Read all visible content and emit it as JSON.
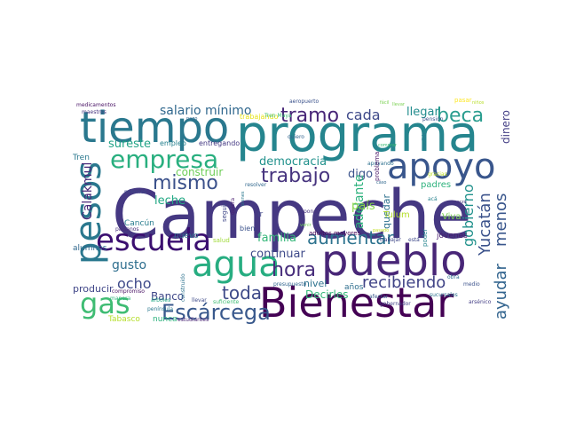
{
  "words": [
    {
      "id": "campeche",
      "text": "Campeche",
      "color": "#453882"
    },
    {
      "id": "programa",
      "text": "programa",
      "color": "#25858e"
    },
    {
      "id": "bienestar",
      "text": "Bienestar",
      "color": "#440154"
    },
    {
      "id": "pueblo",
      "text": "pueblo",
      "color": "#482677"
    },
    {
      "id": "tiempo",
      "text": "tiempo",
      "color": "#2a788e"
    },
    {
      "id": "apoyo",
      "text": "apoyo",
      "color": "#39568c"
    },
    {
      "id": "escuela",
      "text": "escuela",
      "color": "#3b0f70"
    },
    {
      "id": "agua",
      "text": "agua",
      "color": "#27ad81"
    },
    {
      "id": "pesos",
      "text": "pesos",
      "color": "#2a788e"
    },
    {
      "id": "gas",
      "text": "gas",
      "color": "#3fbc73"
    },
    {
      "id": "empresa",
      "text": "empresa",
      "color": "#29af7f"
    },
    {
      "id": "escarcega",
      "text": "Escárcega",
      "color": "#38588c"
    },
    {
      "id": "tramo",
      "text": "tramo",
      "color": "#482677"
    },
    {
      "id": "beca",
      "text": "beca",
      "color": "#2a9d8f"
    },
    {
      "id": "trabajo",
      "text": "trabajo",
      "color": "#46337e"
    },
    {
      "id": "mismo",
      "text": "mismo",
      "color": "#3b518b"
    },
    {
      "id": "aumentar",
      "text": "aumentar",
      "color": "#2c728e"
    },
    {
      "id": "hora",
      "text": "hora",
      "color": "#472d7b"
    },
    {
      "id": "recibiendo",
      "text": "recibiendo",
      "color": "#414487"
    },
    {
      "id": "toda",
      "text": "toda",
      "color": "#3e4a89"
    },
    {
      "id": "ayudar",
      "text": "ayudar",
      "color": "#32648e"
    },
    {
      "id": "yucatan",
      "text": "Yucatán",
      "color": "#3b528b"
    },
    {
      "id": "menos",
      "text": "menos",
      "color": "#39568c"
    },
    {
      "id": "gobierno",
      "text": "gobierno",
      "color": "#21918c"
    },
    {
      "id": "salario",
      "text": "salario mínimo",
      "color": "#31688e"
    },
    {
      "id": "cada",
      "text": "cada",
      "color": "#3e4989"
    },
    {
      "id": "llegar",
      "text": "llegar",
      "color": "#228c8d"
    },
    {
      "id": "sureste",
      "text": "sureste",
      "color": "#20a386"
    },
    {
      "id": "democracia",
      "text": "democracia",
      "color": "#21918c"
    },
    {
      "id": "construir",
      "text": "construir",
      "color": "#6ece58"
    },
    {
      "id": "digo",
      "text": "digo",
      "color": "#3a538b"
    },
    {
      "id": "leche",
      "text": "leche",
      "color": "#22a884"
    },
    {
      "id": "calakmul",
      "text": "Calakmul",
      "color": "#482878"
    },
    {
      "id": "adelante",
      "text": "adelante",
      "color": "#2db27d"
    },
    {
      "id": "pais",
      "text": "país",
      "color": "#86d549"
    },
    {
      "id": "familia",
      "text": "familia",
      "color": "#35b779"
    },
    {
      "id": "continuar",
      "text": "continuar",
      "color": "#3e4a89"
    },
    {
      "id": "ocho",
      "text": "ocho",
      "color": "#3e4989"
    },
    {
      "id": "gusto",
      "text": "gusto",
      "color": "#2e6e8e"
    },
    {
      "id": "nivel",
      "text": "nivel",
      "color": "#2c728e"
    },
    {
      "id": "decirles",
      "text": "Decirles",
      "color": "#35b779"
    },
    {
      "id": "banco",
      "text": "Banco",
      "color": "#3f4788"
    },
    {
      "id": "producir",
      "text": "producir",
      "color": "#404688"
    },
    {
      "id": "quedar",
      "text": "quedar",
      "color": "#2d708e"
    },
    {
      "id": "dinero",
      "text": "dinero",
      "color": "#433e85"
    },
    {
      "id": "tren",
      "text": "Tren",
      "color": "#2a788e"
    },
    {
      "id": "tulum",
      "text": "Tulum",
      "color": "#b5de2b"
    },
    {
      "id": "viva",
      "text": "Viva",
      "color": "#7ad151"
    },
    {
      "id": "padres",
      "text": "padres",
      "color": "#2db27d"
    },
    {
      "id": "jovenes",
      "text": "jóvenes",
      "color": "#481c6e"
    },
    {
      "id": "anos",
      "text": "años",
      "color": "#2e6e8e"
    },
    {
      "id": "alumnos",
      "text": "alumnos",
      "color": "#30688e"
    },
    {
      "id": "cancun",
      "text": "Cancún",
      "color": "#287d8e"
    },
    {
      "id": "nuevo",
      "text": "nuevo",
      "color": "#2c728e"
    },
    {
      "id": "tabasco",
      "text": "Tabasco",
      "color": "#b5de2b"
    },
    {
      "id": "nunca",
      "text": "nunca",
      "color": "#2db27d"
    },
    {
      "id": "entregando",
      "text": "entregando",
      "color": "#443983"
    },
    {
      "id": "empleo",
      "text": "empleo",
      "color": "#26818e"
    },
    {
      "id": "trabajando",
      "text": "trabajando",
      "color": "#e5e419"
    },
    {
      "id": "maestros",
      "text": "maestros",
      "color": "#46327e"
    },
    {
      "id": "medicamentos",
      "text": "medicamentos",
      "color": "#471063"
    },
    {
      "id": "aeropuerto",
      "text": "aeropuerto",
      "color": "#3b528b"
    },
    {
      "id": "pension",
      "text": "pensión",
      "color": "#3b528b"
    },
    {
      "id": "quiero",
      "text": "quiero",
      "color": "#33638d"
    },
    {
      "id": "apoyando",
      "text": "apoyando",
      "color": "#2d708e"
    },
    {
      "id": "problema",
      "text": "problema",
      "color": "#471365"
    },
    {
      "id": "recibir",
      "text": "recibir",
      "color": "#2a788e"
    },
    {
      "id": "bien",
      "text": "bien",
      "color": "#3b528b"
    },
    {
      "id": "ir",
      "text": "ir",
      "color": "#404688"
    },
    {
      "id": "seguir",
      "text": "seguir",
      "color": "#3f4788"
    },
    {
      "id": "salud",
      "text": "salud",
      "color": "#a0da39"
    },
    {
      "id": "quiera",
      "text": "quiera",
      "color": "#481d6f"
    },
    {
      "id": "poner",
      "text": "poner",
      "color": "#46327e"
    },
    {
      "id": "resolver",
      "text": "resolver",
      "color": "#31688e"
    },
    {
      "id": "tren_maya",
      "text": "Tren Maya",
      "color": "#3dbc74"
    },
    {
      "id": "adultos",
      "text": "adultos mayores",
      "color": "#440154"
    },
    {
      "id": "presupuesto",
      "text": "presupuesto",
      "color": "#32658e"
    },
    {
      "id": "poder",
      "text": "poder",
      "color": "#25858e"
    },
    {
      "id": "afectar",
      "text": "afectar",
      "color": "#38588c"
    },
    {
      "id": "gobernador",
      "text": "gobernador",
      "color": "#424086"
    },
    {
      "id": "sucursales",
      "text": "sucursales",
      "color": "#2c728e"
    },
    {
      "id": "arsenico",
      "text": "arsénico",
      "color": "#433e85"
    },
    {
      "id": "medio",
      "text": "medio",
      "color": "#3b528b"
    },
    {
      "id": "obra",
      "text": "obra",
      "color": "#2d708e"
    },
    {
      "id": "millones",
      "text": "millones",
      "color": "#3e4989"
    },
    {
      "id": "peninsula",
      "text": "península",
      "color": "#2a788e"
    },
    {
      "id": "compromiso",
      "text": "compromiso",
      "color": "#471063"
    },
    {
      "id": "manera",
      "text": "manera",
      "color": "#2fb47c"
    },
    {
      "id": "arboles",
      "text": "árboles",
      "color": "#22a884"
    },
    {
      "id": "paisanos",
      "text": "paisanos",
      "color": "#472c7a"
    },
    {
      "id": "estudiantes",
      "text": "estudiantes",
      "color": "#482475"
    },
    {
      "id": "llevar",
      "text": "llevar",
      "color": "#3e4a89"
    },
    {
      "id": "suficiente",
      "text": "suficiente",
      "color": "#3fbc73"
    },
    {
      "id": "pasar",
      "text": "pasar",
      "color": "#fde725"
    },
    {
      "id": "ninos",
      "text": "niños",
      "color": "#b8de29"
    },
    {
      "id": "trabajar",
      "text": "trabajar",
      "color": "#3f4788"
    },
    {
      "id": "esta",
      "text": "está",
      "color": "#3e4989"
    },
    {
      "id": "aca",
      "text": "acá",
      "color": "#26828e"
    },
    {
      "id": "gracias",
      "text": "gracias",
      "color": "#bddf26"
    },
    {
      "id": "pasado",
      "text": "pasado",
      "color": "#c2df23"
    },
    {
      "id": "caso",
      "text": "caso",
      "color": "#31688e"
    },
    {
      "id": "facil",
      "text": "fácil",
      "color": "#7ad151"
    },
    {
      "id": "llevar2",
      "text": "llevar",
      "color": "#7ad151"
    },
    {
      "id": "construido",
      "text": "construido",
      "color": "#2c728e"
    },
    {
      "id": "comprar",
      "text": "comprar",
      "color": "#3dbc74"
    },
    {
      "id": "pago",
      "text": "pago",
      "color": "#31688e"
    },
    {
      "id": "venir",
      "text": "venir",
      "color": "#6ece58"
    },
    {
      "id": "marzo",
      "text": "marzo",
      "color": "#46327e"
    },
    {
      "id": "bienes",
      "text": "bienes",
      "color": "#2a788e"
    }
  ]
}
